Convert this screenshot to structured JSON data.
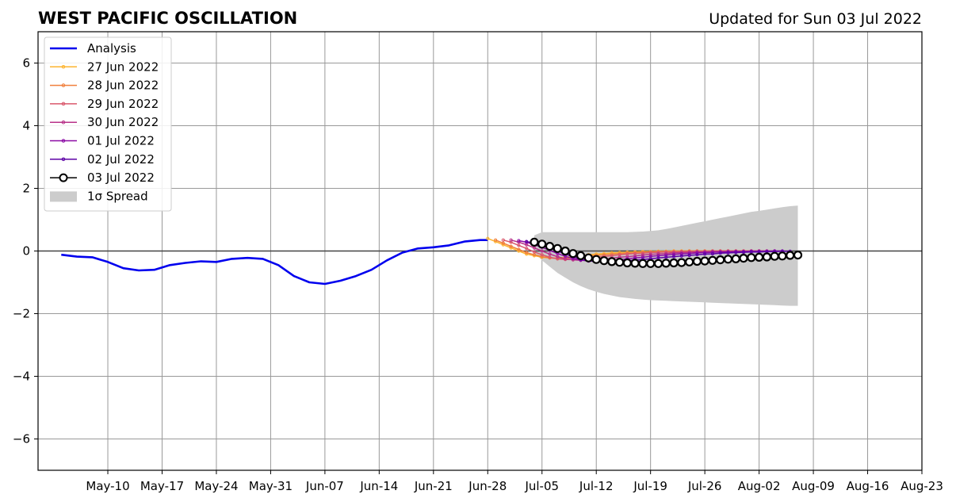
{
  "chart_data": {
    "type": "line",
    "title": "WEST PACIFIC OSCILLATION",
    "subtitle": "Updated for Sun 03 Jul 2022",
    "xlabel": "",
    "ylabel": "",
    "x_range": [
      "2022-05-01",
      "2022-08-23"
    ],
    "ylim": [
      -7,
      7
    ],
    "grid": true,
    "legend_position": "top-left",
    "x_ticks": [
      "May-10",
      "May-17",
      "May-24",
      "May-31",
      "Jun-07",
      "Jun-14",
      "Jun-21",
      "Jun-28",
      "Jul-05",
      "Jul-12",
      "Jul-19",
      "Jul-26",
      "Aug-02",
      "Aug-09",
      "Aug-16",
      "Aug-23"
    ],
    "x_tick_dates": [
      "2022-05-10",
      "2022-05-17",
      "2022-05-24",
      "2022-05-31",
      "2022-06-07",
      "2022-06-14",
      "2022-06-21",
      "2022-06-28",
      "2022-07-05",
      "2022-07-12",
      "2022-07-19",
      "2022-07-26",
      "2022-08-02",
      "2022-08-09",
      "2022-08-16",
      "2022-08-23"
    ],
    "y_ticks": [
      "6",
      "4",
      "2",
      "0",
      "−2",
      "−4",
      "−6"
    ],
    "y_tick_values": [
      6,
      4,
      2,
      0,
      -2,
      -4,
      -6
    ],
    "analysis": {
      "name": "Analysis",
      "color": "#0000ee",
      "x": [
        "2022-05-04",
        "2022-05-06",
        "2022-05-08",
        "2022-05-10",
        "2022-05-12",
        "2022-05-14",
        "2022-05-16",
        "2022-05-18",
        "2022-05-20",
        "2022-05-22",
        "2022-05-24",
        "2022-05-26",
        "2022-05-28",
        "2022-05-30",
        "2022-06-01",
        "2022-06-03",
        "2022-06-05",
        "2022-06-07",
        "2022-06-09",
        "2022-06-11",
        "2022-06-13",
        "2022-06-15",
        "2022-06-17",
        "2022-06-19",
        "2022-06-21",
        "2022-06-23",
        "2022-06-25",
        "2022-06-27",
        "2022-06-28"
      ],
      "y": [
        -0.12,
        -0.18,
        -0.2,
        -0.35,
        -0.55,
        -0.62,
        -0.6,
        -0.45,
        -0.38,
        -0.33,
        -0.35,
        -0.25,
        -0.22,
        -0.25,
        -0.45,
        -0.8,
        -1.0,
        -1.05,
        -0.95,
        -0.8,
        -0.6,
        -0.3,
        -0.05,
        0.08,
        0.12,
        0.18,
        0.3,
        0.35,
        0.35
      ]
    },
    "forecasts": [
      {
        "name": "27 Jun 2022",
        "color": "#fdb42f",
        "start": "2022-06-28",
        "y": [
          0.4,
          0.3,
          0.2,
          0.1,
          0.0,
          -0.1,
          -0.15,
          -0.2,
          -0.22,
          -0.22,
          -0.2,
          -0.18,
          -0.15,
          -0.12,
          -0.1,
          -0.08,
          -0.06,
          -0.05,
          -0.04,
          -0.03,
          -0.02,
          -0.02,
          -0.01,
          -0.01,
          0.0,
          0.0,
          0.0,
          0.0,
          0.0,
          0.0,
          0.0,
          0.0,
          0.0,
          0.0,
          0.0
        ]
      },
      {
        "name": "28 Jun 2022",
        "color": "#f07f3c",
        "start": "2022-06-29",
        "y": [
          0.35,
          0.25,
          0.15,
          0.05,
          -0.05,
          -0.12,
          -0.18,
          -0.22,
          -0.24,
          -0.23,
          -0.21,
          -0.19,
          -0.16,
          -0.14,
          -0.12,
          -0.1,
          -0.08,
          -0.06,
          -0.05,
          -0.04,
          -0.03,
          -0.02,
          -0.02,
          -0.01,
          -0.01,
          0.0,
          0.0,
          0.0,
          0.0,
          0.0,
          0.0,
          0.0,
          0.0,
          0.0,
          0.0
        ]
      },
      {
        "name": "29 Jun 2022",
        "color": "#d9586c",
        "start": "2022-06-30",
        "y": [
          0.35,
          0.28,
          0.18,
          0.08,
          -0.03,
          -0.12,
          -0.2,
          -0.25,
          -0.27,
          -0.27,
          -0.25,
          -0.22,
          -0.2,
          -0.17,
          -0.15,
          -0.12,
          -0.1,
          -0.08,
          -0.07,
          -0.05,
          -0.04,
          -0.03,
          -0.03,
          -0.02,
          -0.02,
          -0.01,
          -0.01,
          0.0,
          0.0,
          0.0,
          0.0,
          0.0,
          0.0,
          0.0,
          0.0
        ]
      },
      {
        "name": "30 Jun 2022",
        "color": "#b83289",
        "start": "2022-07-01",
        "y": [
          0.35,
          0.28,
          0.2,
          0.1,
          0.0,
          -0.1,
          -0.18,
          -0.25,
          -0.28,
          -0.3,
          -0.3,
          -0.28,
          -0.26,
          -0.23,
          -0.2,
          -0.18,
          -0.16,
          -0.13,
          -0.11,
          -0.09,
          -0.08,
          -0.06,
          -0.05,
          -0.04,
          -0.03,
          -0.03,
          -0.02,
          -0.02,
          -0.01,
          -0.01,
          -0.01,
          0.0,
          0.0,
          0.0,
          0.0
        ]
      },
      {
        "name": "01 Jul 2022",
        "color": "#8b0aa5",
        "start": "2022-07-02",
        "y": [
          0.33,
          0.28,
          0.2,
          0.12,
          0.02,
          -0.08,
          -0.17,
          -0.24,
          -0.29,
          -0.32,
          -0.33,
          -0.32,
          -0.3,
          -0.28,
          -0.25,
          -0.22,
          -0.2,
          -0.17,
          -0.15,
          -0.13,
          -0.11,
          -0.09,
          -0.08,
          -0.06,
          -0.05,
          -0.04,
          -0.03,
          -0.03,
          -0.02,
          -0.02,
          -0.01,
          -0.01,
          -0.01,
          0.0,
          0.0
        ]
      },
      {
        "name": "02 Jul 2022",
        "color": "#5c01a6",
        "start": "2022-07-03",
        "y": [
          0.3,
          0.25,
          0.18,
          0.1,
          0.0,
          -0.1,
          -0.18,
          -0.26,
          -0.31,
          -0.34,
          -0.35,
          -0.34,
          -0.33,
          -0.31,
          -0.29,
          -0.27,
          -0.25,
          -0.22,
          -0.2,
          -0.18,
          -0.16,
          -0.14,
          -0.12,
          -0.1,
          -0.09,
          -0.07,
          -0.06,
          -0.05,
          -0.04,
          -0.03,
          -0.03,
          -0.02,
          -0.02,
          -0.01,
          -0.01
        ]
      },
      {
        "name": "03 Jul 2022",
        "color": "#000000",
        "start": "2022-07-04",
        "y": [
          0.28,
          0.22,
          0.15,
          0.08,
          0.0,
          -0.08,
          -0.15,
          -0.22,
          -0.27,
          -0.31,
          -0.34,
          -0.36,
          -0.38,
          -0.39,
          -0.4,
          -0.4,
          -0.4,
          -0.39,
          -0.38,
          -0.37,
          -0.35,
          -0.33,
          -0.32,
          -0.3,
          -0.28,
          -0.26,
          -0.25,
          -0.23,
          -0.21,
          -0.2,
          -0.19,
          -0.17,
          -0.16,
          -0.14,
          -0.13
        ]
      }
    ],
    "spread": {
      "name": "1σ Spread",
      "color": "#cccccc",
      "start": "2022-07-04",
      "upper": [
        0.5,
        0.6,
        0.6,
        0.6,
        0.6,
        0.6,
        0.6,
        0.6,
        0.6,
        0.6,
        0.6,
        0.6,
        0.6,
        0.61,
        0.62,
        0.64,
        0.66,
        0.7,
        0.75,
        0.8,
        0.85,
        0.9,
        0.95,
        1.0,
        1.05,
        1.1,
        1.15,
        1.2,
        1.25,
        1.28,
        1.32,
        1.36,
        1.4,
        1.43,
        1.45
      ],
      "lower": [
        -0.05,
        -0.3,
        -0.5,
        -0.7,
        -0.85,
        -1.0,
        -1.12,
        -1.22,
        -1.3,
        -1.37,
        -1.42,
        -1.47,
        -1.5,
        -1.53,
        -1.55,
        -1.57,
        -1.58,
        -1.59,
        -1.6,
        -1.61,
        -1.62,
        -1.63,
        -1.64,
        -1.65,
        -1.66,
        -1.67,
        -1.68,
        -1.69,
        -1.7,
        -1.71,
        -1.72,
        -1.73,
        -1.74,
        -1.75,
        -1.75
      ]
    },
    "legend": [
      "Analysis",
      "27 Jun 2022",
      "28 Jun 2022",
      "29 Jun 2022",
      "30 Jun 2022",
      "01 Jul 2022",
      "02 Jul 2022",
      "03 Jul 2022",
      "1σ Spread"
    ]
  }
}
